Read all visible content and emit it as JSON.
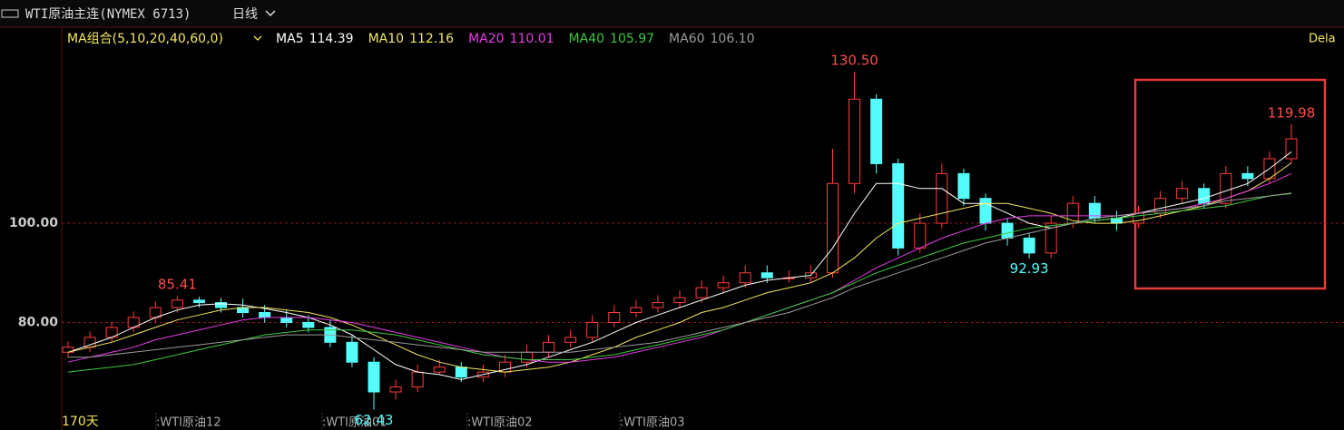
{
  "chart_data": {
    "type": "candlestick",
    "title": "WTI原油主连(NYMEX 6713)",
    "period": "日线",
    "ma_group": "MA组合(5,10,20,40,60,0)",
    "delay": "Dela",
    "span_label": "170天",
    "contracts": [
      ":WTI原油12",
      ":WTI原油01",
      ":WTI原油02",
      ":WTI原油03"
    ],
    "ylim": [
      61.8,
      139.5
    ],
    "yticks": [
      {
        "value": 80,
        "label": "80.00"
      },
      {
        "value": 100,
        "label": "100.00"
      }
    ],
    "grid": true,
    "up_color": "#ff3c3c",
    "down_color": "#54fcfc",
    "open": [
      74,
      75,
      77,
      79,
      81,
      83,
      84.5,
      84,
      83,
      82,
      81,
      80,
      79,
      76,
      72,
      66,
      67,
      70,
      71,
      69,
      70,
      72,
      74,
      76,
      77,
      80,
      82,
      83,
      84,
      85,
      87,
      88,
      90,
      89,
      89,
      90,
      108,
      125,
      112,
      95,
      100,
      110,
      105,
      100,
      97,
      94,
      100,
      104,
      101,
      100,
      102,
      105,
      107,
      104,
      110,
      109,
      113
    ],
    "high": [
      76.2,
      78.2,
      80.2,
      82.2,
      84.2,
      85.41,
      85.2,
      85,
      84.8,
      83.5,
      82.5,
      81.5,
      80.5,
      77.5,
      73,
      68.5,
      71.5,
      72.5,
      72,
      71.5,
      73.5,
      75.5,
      77.5,
      78.5,
      81.5,
      83.5,
      84.5,
      85.5,
      86.5,
      88.5,
      89.5,
      91.5,
      91.5,
      90.5,
      91.5,
      115,
      130.5,
      126,
      113,
      102,
      112,
      111,
      106,
      101,
      98,
      101.5,
      105.5,
      105.5,
      102.5,
      103.5,
      106.5,
      108.5,
      108,
      111.5,
      111.5,
      114.5,
      119.98
    ],
    "low": [
      73,
      74,
      76,
      78,
      80,
      82,
      83,
      82,
      81,
      80,
      79,
      78,
      75,
      71,
      62.43,
      64.5,
      66,
      69.5,
      68,
      68,
      69,
      71,
      73,
      75,
      76,
      79,
      81,
      82,
      83,
      84,
      86,
      87,
      88,
      88,
      88,
      89,
      106,
      110,
      93.5,
      94,
      99,
      103.5,
      98.5,
      95.5,
      92.93,
      93,
      99,
      100,
      98.5,
      99,
      101,
      104,
      103,
      103,
      107.5,
      108,
      112
    ],
    "close": [
      75,
      77,
      79,
      81,
      83,
      84.5,
      84,
      83,
      82,
      81,
      80,
      79,
      76,
      72,
      66,
      67,
      70,
      71,
      69,
      70,
      72,
      74,
      76,
      77,
      80,
      82,
      83,
      84,
      85,
      87,
      88,
      90,
      89,
      89,
      90,
      108,
      125,
      112,
      95,
      100,
      110,
      105,
      100,
      97,
      94,
      100,
      104,
      101,
      100,
      102,
      105,
      107,
      104,
      110,
      109,
      113,
      117
    ],
    "series": [
      {
        "name": "MA5",
        "color": "#ffffff",
        "last_label": "114.39",
        "values": [
          74,
          75.5,
          77,
          79,
          81,
          82.5,
          83.5,
          83.8,
          83.5,
          82.8,
          82,
          81,
          79.5,
          77.5,
          74.5,
          71.5,
          70,
          69.5,
          68.5,
          69.5,
          70.5,
          71.5,
          73,
          74.5,
          76,
          78,
          80,
          81.5,
          83,
          84.5,
          86,
          87.5,
          88.5,
          89,
          89.5,
          95,
          102,
          108,
          108,
          107,
          107,
          104,
          104,
          102,
          100,
          99,
          100,
          100.5,
          101,
          102,
          103,
          104,
          105,
          106.5,
          108,
          111,
          114.39
        ]
      },
      {
        "name": "MA10",
        "color": "#f5e65a",
        "last_label": "112.16",
        "values": [
          74,
          75,
          76,
          77.5,
          79,
          80.5,
          81.5,
          82.5,
          83,
          83,
          82.5,
          82,
          81,
          79.5,
          77.5,
          75.5,
          73.5,
          72,
          71,
          70.5,
          70,
          70.5,
          71,
          72,
          73.5,
          75,
          77,
          78.5,
          80,
          82,
          83,
          84.5,
          86,
          87,
          88,
          90,
          93,
          97,
          100,
          101,
          102,
          103,
          104,
          104,
          103,
          102,
          100.5,
          100,
          100,
          100.5,
          101.5,
          102.5,
          103.5,
          105,
          106.5,
          109,
          112.16
        ]
      },
      {
        "name": "MA20",
        "color": "#e83ce8",
        "last_label": "110.01",
        "values": [
          72,
          73,
          74,
          75,
          76.5,
          77.5,
          78.5,
          79.5,
          80.5,
          81,
          81,
          81,
          80.5,
          80,
          79,
          78,
          77,
          76,
          75,
          74,
          73,
          72.5,
          72,
          72,
          72.5,
          73,
          74,
          75,
          76,
          77,
          78.5,
          80,
          81.5,
          83,
          84.5,
          86,
          88.5,
          91,
          93,
          95,
          97,
          98.5,
          100,
          101,
          101.5,
          101.5,
          101.5,
          101.5,
          101.5,
          102,
          102.5,
          103,
          104,
          105,
          106.5,
          108,
          110.01
        ]
      },
      {
        "name": "MA40",
        "color": "#3cc83c",
        "last_label": "105.97",
        "values": [
          70,
          70.5,
          71,
          71.5,
          72.5,
          73.5,
          74.5,
          75.5,
          76.5,
          77.5,
          78,
          78.5,
          78.5,
          78.5,
          78,
          77.5,
          76.5,
          75.5,
          74.5,
          73.5,
          73,
          72.5,
          72.5,
          72.5,
          73,
          73.5,
          74.5,
          75.5,
          76.5,
          77.5,
          78.5,
          80,
          81.5,
          83,
          84.5,
          86,
          88,
          90,
          91.5,
          93,
          94.5,
          96,
          97,
          98,
          99,
          99.5,
          100,
          100.5,
          101,
          101.5,
          102,
          102.5,
          103,
          103.5,
          104.5,
          105.5,
          105.97
        ]
      },
      {
        "name": "MA60",
        "color": "#9a9a9a",
        "last_label": "106.10",
        "values": [
          73,
          73,
          73.5,
          74,
          74.5,
          75,
          75.5,
          76,
          76.5,
          77,
          77.5,
          77.5,
          77.5,
          77,
          76.5,
          76,
          75.5,
          75,
          74.5,
          74,
          74,
          74,
          74,
          74,
          74.5,
          75,
          75.5,
          76,
          77,
          78,
          79,
          80,
          81,
          82,
          83.5,
          85,
          87,
          88.5,
          90,
          91.5,
          93,
          94.5,
          96,
          97,
          98,
          99,
          100,
          101,
          101.5,
          102,
          102.5,
          103,
          103.5,
          104.5,
          105,
          105.5,
          106.1
        ]
      }
    ],
    "annotations": [
      {
        "value": 130.5,
        "label": "130.50",
        "color": "#ff4d4d"
      },
      {
        "value": 119.98,
        "label": "119.98",
        "color": "#ff4d4d"
      },
      {
        "value": 85.41,
        "label": "85.41",
        "color": "#ff4d4d"
      },
      {
        "value": 92.93,
        "label": "92.93",
        "color": "#54fcfc"
      },
      {
        "value": 62.43,
        "label": "62.43",
        "color": "#54fcfc"
      }
    ]
  }
}
